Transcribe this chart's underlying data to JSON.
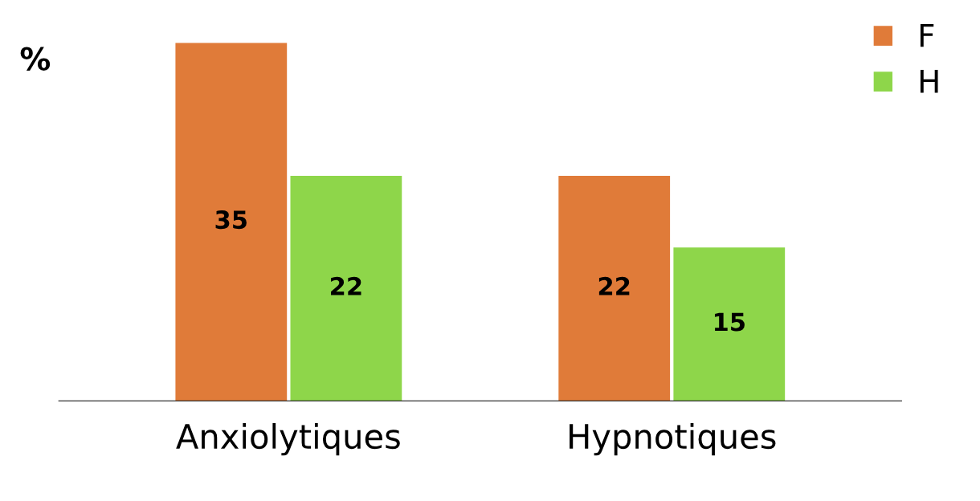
{
  "chart_data": {
    "type": "bar",
    "ylabel": "%",
    "categories": [
      "Anxiolytiques",
      "Hypnotiques"
    ],
    "series": [
      {
        "name": "F",
        "color": "#e07b39",
        "values": [
          35,
          22
        ]
      },
      {
        "name": "H",
        "color": "#8ed64a",
        "values": [
          22,
          15
        ]
      }
    ],
    "data_labels": true,
    "legend": "top right",
    "tick_labels": "x",
    "grid": false
  }
}
